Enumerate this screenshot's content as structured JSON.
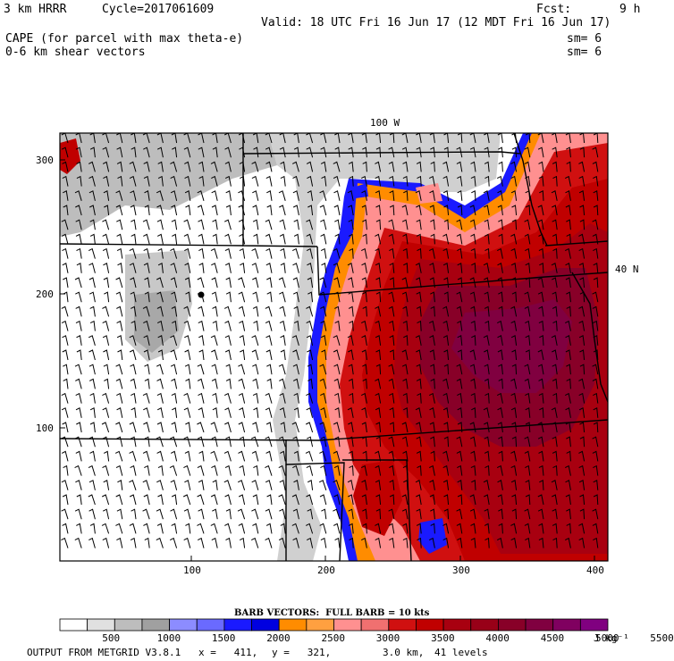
{
  "header": {
    "model": "3 km HRRR",
    "cycle": "Cycle=2017061609",
    "fcst_label": "Fcst:",
    "fcst_value": "9 h",
    "valid": "Valid: 18 UTC Fri 16 Jun 17 (12 MDT Fri 16 Jun 17)",
    "field1": "CAPE (for parcel with max theta-e)",
    "field2": "0-6 km shear vectors",
    "sm1": "sm= 6",
    "sm2": "sm= 6"
  },
  "map": {
    "meridian_label": "100 W",
    "parallel_label": "40 N",
    "x_ticks": [
      "100",
      "200",
      "300",
      "400"
    ],
    "y_ticks": [
      "300",
      "200",
      "100"
    ],
    "station_marker": "dot"
  },
  "legend": {
    "barb_note": "BARB VECTORS:  FULL BARB = 10 kts",
    "units": "J kg⁻¹",
    "tick_labels": [
      "500",
      "1000",
      "1500",
      "2000",
      "2500",
      "3000",
      "3500",
      "4000",
      "4500",
      "5000",
      "5500"
    ],
    "colors": [
      "#ffffff",
      "#e0e0e0",
      "#bdbdbd",
      "#a0a0a0",
      "#8c8cff",
      "#6a6aff",
      "#1a1aff",
      "#0000e0",
      "#ff8c00",
      "#ffa040",
      "#ff9090",
      "#f07070",
      "#d01010",
      "#c00000",
      "#a80010",
      "#980018",
      "#880028",
      "#800040",
      "#800060",
      "#800080"
    ]
  },
  "footer": {
    "source": "OUTPUT FROM METGRID V3.8.1",
    "x": "x =   411,",
    "y": "y =   321,",
    "res": "3.0 km,",
    "levels": "41 levels"
  }
}
